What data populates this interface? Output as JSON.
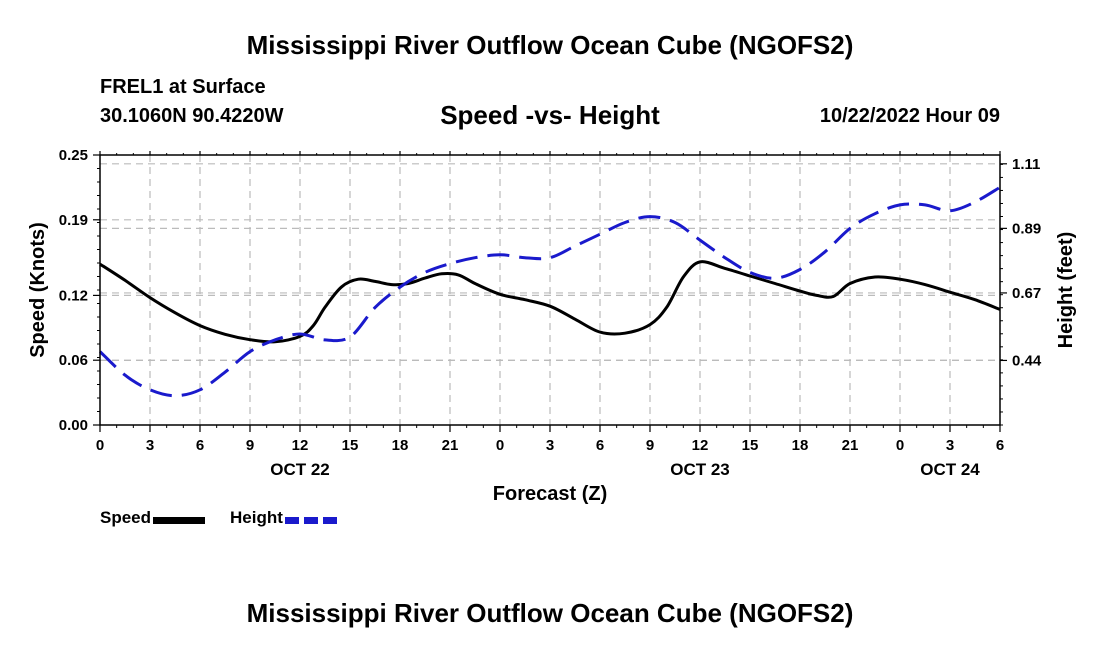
{
  "header": {
    "main_title": "Mississippi River Outflow Ocean Cube (NGOFS2)",
    "station": "FREL1 at Surface",
    "coords": "30.1060N  90.4220W",
    "chart_title": "Speed -vs- Height",
    "datetime": "10/22/2022 Hour 09"
  },
  "footer": {
    "repeated_title": "Mississippi River Outflow Ocean Cube (NGOFS2)"
  },
  "legend": {
    "speed_label": "Speed",
    "height_label": "Height"
  },
  "colors": {
    "speed": "#000000",
    "height": "#1a1acc",
    "grid": "#bbbbbb"
  },
  "chart_data": {
    "type": "line",
    "title": "Speed -vs- Height",
    "xlabel": "Forecast (Z)",
    "ylabel": "Speed (Knots)",
    "y2label": "Height (feet)",
    "x_hours": [
      0,
      54
    ],
    "x_ticks": [
      0,
      3,
      6,
      9,
      12,
      15,
      18,
      21,
      24,
      27,
      30,
      33,
      36,
      39,
      42,
      45,
      48,
      51,
      54
    ],
    "x_tick_labels": [
      "0",
      "3",
      "6",
      "9",
      "12",
      "15",
      "18",
      "21",
      "0",
      "3",
      "6",
      "9",
      "12",
      "15",
      "18",
      "21",
      "0",
      "3",
      "6"
    ],
    "date_labels": [
      {
        "hour": 12,
        "label": "OCT 22"
      },
      {
        "hour": 36,
        "label": "OCT 23"
      },
      {
        "hour": 51,
        "label": "OCT 24"
      }
    ],
    "ylim": [
      0,
      0.25
    ],
    "y_ticks": [
      0,
      0.06,
      0.12,
      0.19,
      0.25
    ],
    "y_tick_labels": [
      "0.00",
      "0.06",
      "0.12",
      "0.19",
      "0.25"
    ],
    "y2lim": [
      0.22,
      1.14
    ],
    "y2_ticks": [
      0.44,
      0.67,
      0.89,
      1.11
    ],
    "y2_tick_labels": [
      "0.44",
      "0.67",
      "0.89",
      "1.11"
    ],
    "series": [
      {
        "name": "Speed",
        "axis": "left",
        "x": [
          0,
          1.5,
          3,
          4.5,
          6,
          7.5,
          9,
          10.5,
          12,
          12.8,
          13.5,
          14.5,
          15.5,
          16.5,
          17.5,
          18.5,
          19.5,
          20.5,
          21.5,
          22.5,
          24,
          25.5,
          27,
          28.5,
          30,
          31.5,
          33,
          34,
          35,
          36,
          37.5,
          39,
          40.5,
          42,
          43,
          44,
          45,
          46.5,
          48,
          49.5,
          51,
          52.5,
          54
        ],
        "values": [
          0.149,
          0.134,
          0.118,
          0.104,
          0.092,
          0.084,
          0.079,
          0.077,
          0.082,
          0.092,
          0.109,
          0.128,
          0.135,
          0.133,
          0.13,
          0.131,
          0.136,
          0.14,
          0.139,
          0.131,
          0.121,
          0.116,
          0.11,
          0.098,
          0.086,
          0.085,
          0.093,
          0.109,
          0.137,
          0.151,
          0.145,
          0.138,
          0.131,
          0.124,
          0.12,
          0.119,
          0.131,
          0.137,
          0.135,
          0.13,
          0.123,
          0.116,
          0.107
        ]
      },
      {
        "name": "Height",
        "axis": "right",
        "x": [
          0,
          1.5,
          3,
          4.5,
          6,
          7.5,
          9,
          10.5,
          12,
          13.5,
          15,
          16.5,
          18,
          19.5,
          21,
          22.5,
          24,
          25.5,
          27,
          28.5,
          30,
          31.5,
          33,
          34.5,
          36,
          37.5,
          39,
          40.5,
          42,
          43.5,
          45,
          46.5,
          48,
          49.5,
          51,
          52.5,
          54
        ],
        "values": [
          0.47,
          0.39,
          0.34,
          0.32,
          0.34,
          0.4,
          0.47,
          0.51,
          0.53,
          0.51,
          0.52,
          0.62,
          0.69,
          0.74,
          0.77,
          0.79,
          0.8,
          0.79,
          0.79,
          0.83,
          0.87,
          0.91,
          0.93,
          0.91,
          0.85,
          0.79,
          0.74,
          0.72,
          0.75,
          0.81,
          0.89,
          0.94,
          0.97,
          0.97,
          0.95,
          0.98,
          1.03
        ]
      }
    ]
  }
}
